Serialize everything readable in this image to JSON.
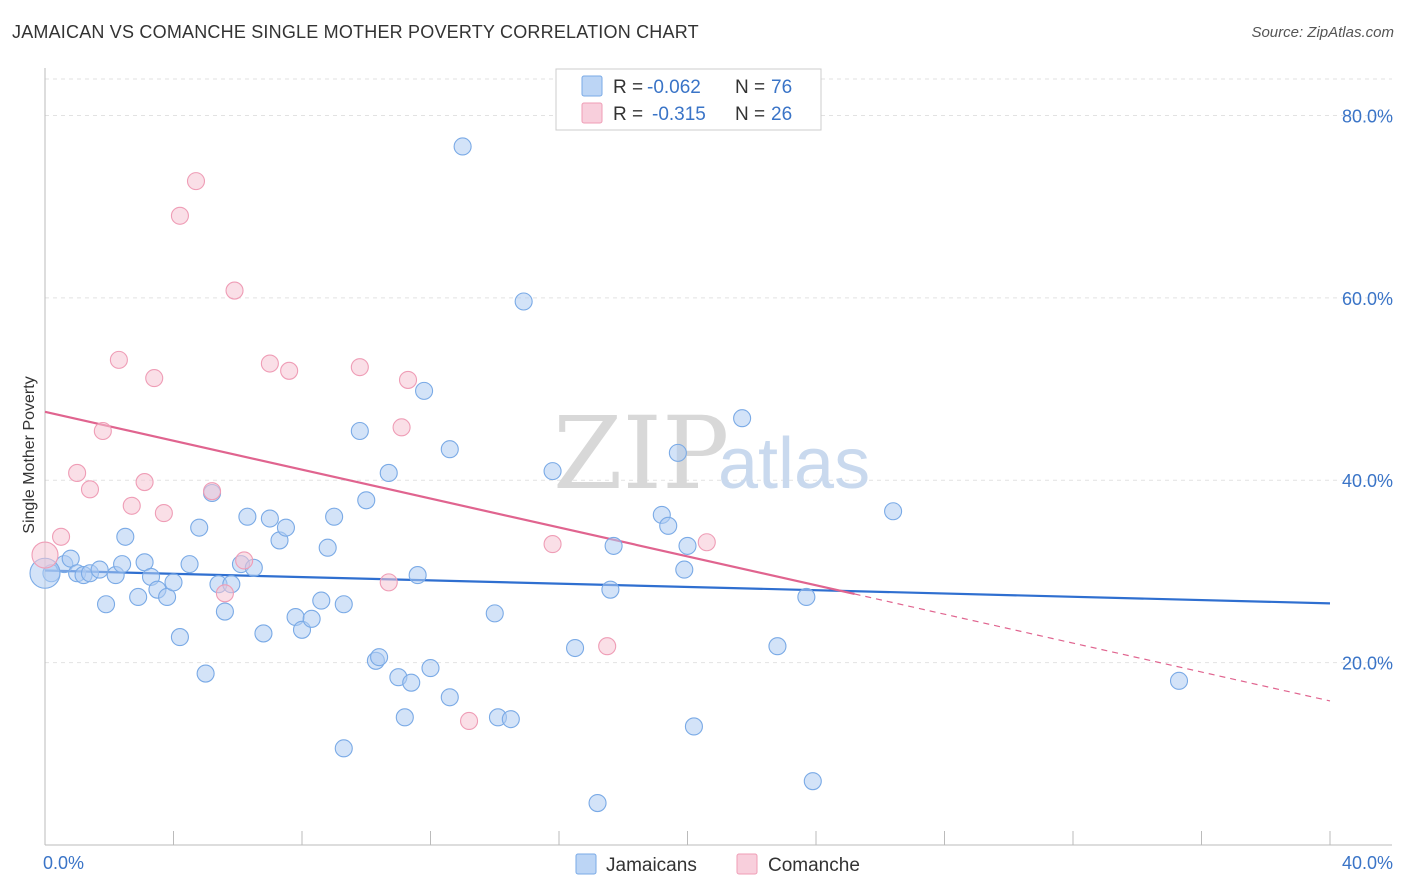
{
  "title": "JAMAICAN VS COMANCHE SINGLE MOTHER POVERTY CORRELATION CHART",
  "source": "Source: ZipAtlas.com",
  "watermark": {
    "zip": "ZIP",
    "atlas": "atlas"
  },
  "legend": {
    "rows": [
      {
        "r_label": "R =",
        "r_value": "-0.062",
        "n_label": "N =",
        "n_value": "76",
        "color": "#7aaae6"
      },
      {
        "r_label": "R =",
        "r_value": "-0.315",
        "n_label": "N =",
        "n_value": "26",
        "color": "#ef9db6"
      }
    ]
  },
  "bottom_legend": [
    {
      "label": "Jamaicans",
      "color": "#7aaae6"
    },
    {
      "label": "Comanche",
      "color": "#ef9db6"
    }
  ],
  "chart_data": {
    "type": "scatter",
    "title": "JAMAICAN VS COMANCHE SINGLE MOTHER POVERTY CORRELATION CHART",
    "xlabel": "",
    "ylabel": "Single Mother Poverty",
    "xlim": [
      0,
      40
    ],
    "ylim": [
      0,
      84
    ],
    "x_tick_labels": [
      "0.0%",
      "40.0%"
    ],
    "y_ticks": [
      20,
      40,
      60,
      80
    ],
    "y_tick_labels": [
      "20.0%",
      "40.0%",
      "60.0%",
      "80.0%"
    ],
    "grid": true,
    "legend_position": "top-center",
    "series": [
      {
        "name": "Jamaicans",
        "color": "#7aaae6",
        "points": [
          [
            0.2,
            29.8
          ],
          [
            0.6,
            30.8
          ],
          [
            0.8,
            31.4
          ],
          [
            1.0,
            29.8
          ],
          [
            1.2,
            29.6
          ],
          [
            1.4,
            29.8
          ],
          [
            1.7,
            30.2
          ],
          [
            1.9,
            26.4
          ],
          [
            2.2,
            29.6
          ],
          [
            2.4,
            30.8
          ],
          [
            2.5,
            33.8
          ],
          [
            2.9,
            27.2
          ],
          [
            3.1,
            31.0
          ],
          [
            3.3,
            29.4
          ],
          [
            3.5,
            28.0
          ],
          [
            3.8,
            27.2
          ],
          [
            4.0,
            28.8
          ],
          [
            4.2,
            22.8
          ],
          [
            4.5,
            30.8
          ],
          [
            4.8,
            34.8
          ],
          [
            5.0,
            18.8
          ],
          [
            5.2,
            38.6
          ],
          [
            5.4,
            28.6
          ],
          [
            5.6,
            25.6
          ],
          [
            5.8,
            28.6
          ],
          [
            6.1,
            30.8
          ],
          [
            6.3,
            36.0
          ],
          [
            6.5,
            30.4
          ],
          [
            6.8,
            23.2
          ],
          [
            7.0,
            35.8
          ],
          [
            7.3,
            33.4
          ],
          [
            7.5,
            34.8
          ],
          [
            7.8,
            25.0
          ],
          [
            8.0,
            23.6
          ],
          [
            8.3,
            24.8
          ],
          [
            8.6,
            26.8
          ],
          [
            8.8,
            32.6
          ],
          [
            9.0,
            36.0
          ],
          [
            9.3,
            26.4
          ],
          [
            9.3,
            10.6
          ],
          [
            9.8,
            45.4
          ],
          [
            10.0,
            37.8
          ],
          [
            10.3,
            20.2
          ],
          [
            10.4,
            20.6
          ],
          [
            10.7,
            40.8
          ],
          [
            11.0,
            18.4
          ],
          [
            11.2,
            14.0
          ],
          [
            11.4,
            17.8
          ],
          [
            11.6,
            29.6
          ],
          [
            11.8,
            49.8
          ],
          [
            12.0,
            19.4
          ],
          [
            12.6,
            16.2
          ],
          [
            12.6,
            43.4
          ],
          [
            13.0,
            76.6
          ],
          [
            14.0,
            25.4
          ],
          [
            14.1,
            14.0
          ],
          [
            14.5,
            13.8
          ],
          [
            14.9,
            59.6
          ],
          [
            15.8,
            41.0
          ],
          [
            16.5,
            21.6
          ],
          [
            17.2,
            4.6
          ],
          [
            17.6,
            28.0
          ],
          [
            17.7,
            32.8
          ],
          [
            19.2,
            36.2
          ],
          [
            19.4,
            35.0
          ],
          [
            19.7,
            43.0
          ],
          [
            19.9,
            30.2
          ],
          [
            20.0,
            32.8
          ],
          [
            20.2,
            13.0
          ],
          [
            21.7,
            46.8
          ],
          [
            22.8,
            21.8
          ],
          [
            23.7,
            27.2
          ],
          [
            23.9,
            7.0
          ],
          [
            26.4,
            36.6
          ],
          [
            35.3,
            18.0
          ],
          [
            0.0,
            29.8
          ]
        ]
      },
      {
        "name": "Comanche",
        "color": "#ef9db6",
        "points": [
          [
            0.0,
            31.8
          ],
          [
            0.5,
            33.8
          ],
          [
            1.0,
            40.8
          ],
          [
            1.4,
            39.0
          ],
          [
            1.8,
            45.4
          ],
          [
            2.3,
            53.2
          ],
          [
            2.7,
            37.2
          ],
          [
            3.1,
            39.8
          ],
          [
            3.4,
            51.2
          ],
          [
            3.7,
            36.4
          ],
          [
            4.2,
            69.0
          ],
          [
            4.7,
            72.8
          ],
          [
            5.2,
            38.8
          ],
          [
            5.6,
            27.6
          ],
          [
            5.9,
            60.8
          ],
          [
            6.2,
            31.2
          ],
          [
            7.0,
            52.8
          ],
          [
            7.6,
            52.0
          ],
          [
            9.8,
            52.4
          ],
          [
            10.7,
            28.8
          ],
          [
            11.1,
            45.8
          ],
          [
            11.3,
            51.0
          ],
          [
            13.2,
            13.6
          ],
          [
            15.8,
            33.0
          ],
          [
            17.5,
            21.8
          ],
          [
            20.6,
            33.2
          ]
        ]
      }
    ],
    "trend_lines": [
      {
        "series": "Jamaicans",
        "x": [
          0,
          40
        ],
        "y": [
          30.1,
          26.5
        ]
      },
      {
        "series": "Comanche",
        "x": [
          0,
          40
        ],
        "y": [
          47.5,
          15.8
        ],
        "solid_until_x": 25.2
      }
    ]
  }
}
